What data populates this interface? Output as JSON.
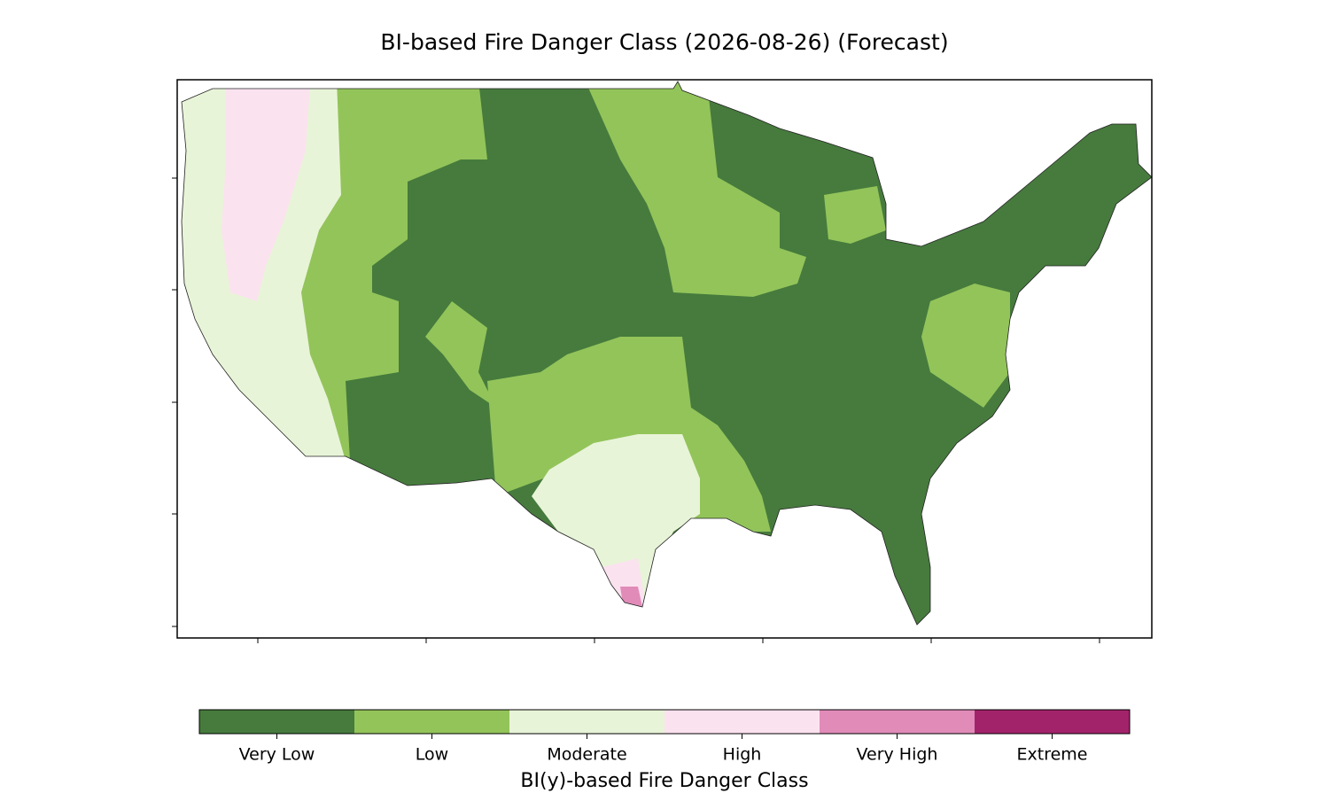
{
  "title": "BI-based Fire Danger Class (2026-08-26) (Forecast)",
  "colorbar": {
    "label": "BI(y)-based Fire Danger Class",
    "classes": [
      {
        "name": "Very Low",
        "color": "#467b3d"
      },
      {
        "name": "Low",
        "color": "#93c45a"
      },
      {
        "name": "Moderate",
        "color": "#e8f4d8"
      },
      {
        "name": "High",
        "color": "#fbe2ef"
      },
      {
        "name": "Very High",
        "color": "#e18bb9"
      },
      {
        "name": "Extreme",
        "color": "#a3236b"
      }
    ]
  }
}
